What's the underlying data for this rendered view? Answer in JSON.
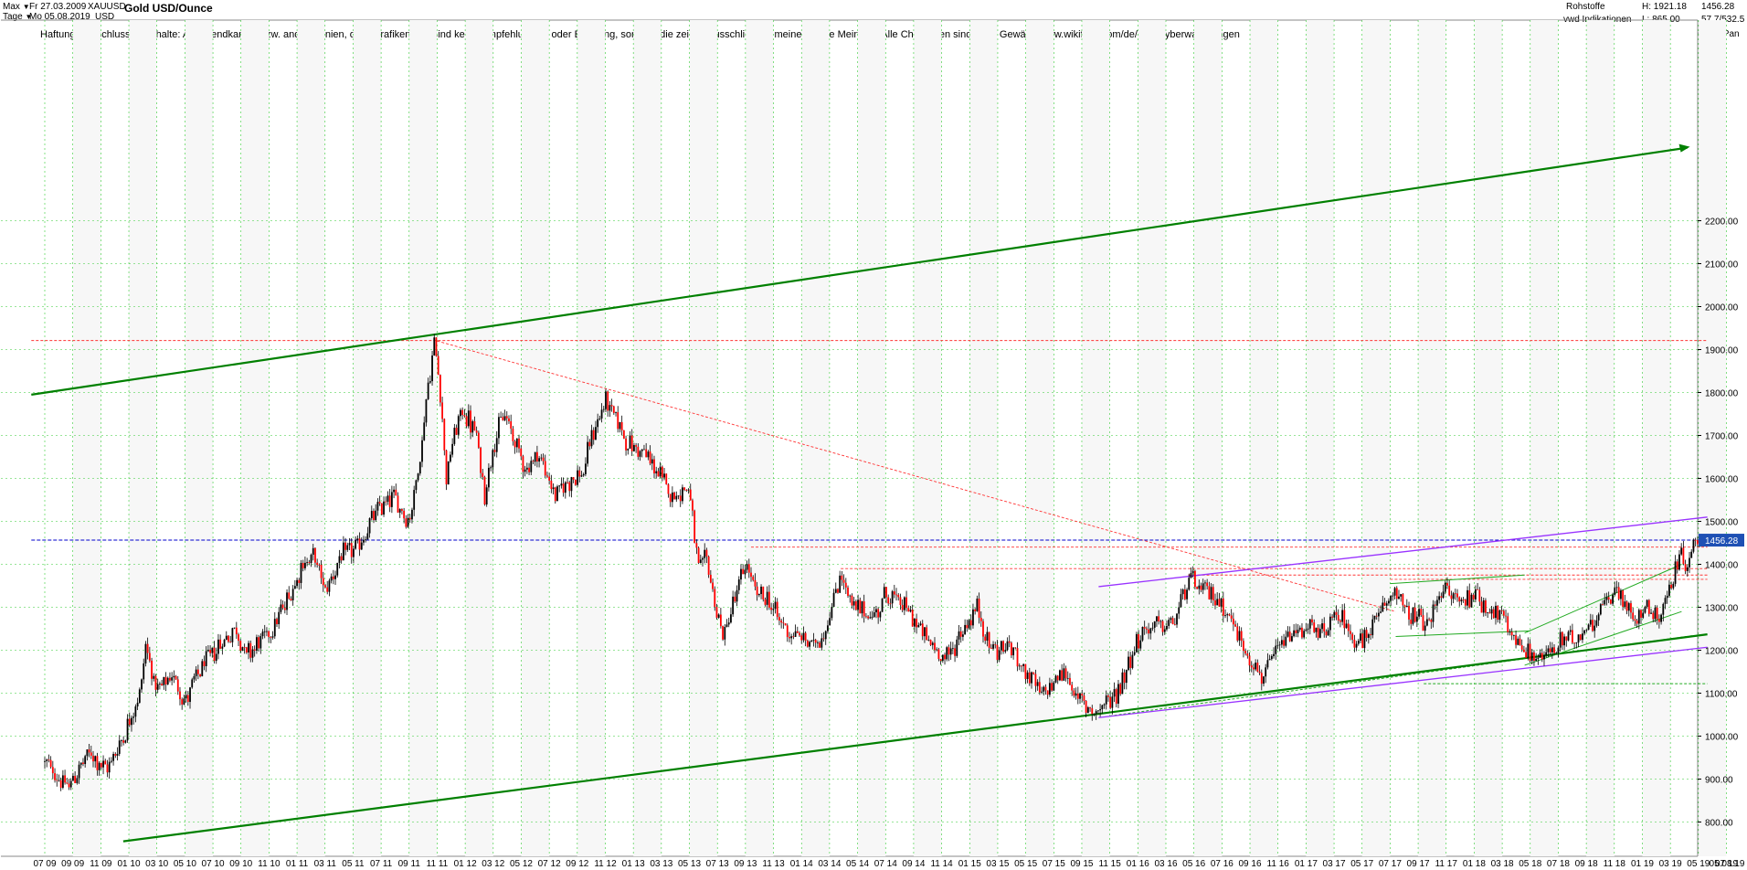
{
  "header": {
    "range_label": "Max",
    "interval_label": "Tage",
    "date_from": "Fr 27.03.2009",
    "date_to": "Mo 05.08.2019",
    "symbol": "XAUUSD",
    "currency": "USD",
    "title": "Gold USD/Ounce",
    "disclaimer": "Haftungsausschluss für Inhalte: Alle Trendkanäle bzw. andere Linien, oder Grafiken hier sind keine Empfehlungen, oder Beratung, sondern die zeigen ausschließlich meine eigene Meinung. Alle Chartdaten sind ohne Gewähr.  www.wikifolio.com/de/de/p/cyberwaehrungen",
    "category": "Rohstoffe",
    "source": "vwd Indikationen",
    "high_label": "H: 1921.18",
    "low_label": "L: 865.00",
    "last_value": "1456.28",
    "ratio": "57.7/532.5",
    "copyright": "(c)Tai-Pan"
  },
  "colors": {
    "grid": "#33cc33",
    "plot_bg": "#f7f7f7",
    "up_candle": "#000000",
    "down_candle": "#ff0000",
    "trend_green": "#008000",
    "trend_green_light": "#22aa22",
    "trend_violet": "#9933ff",
    "hline_red": "#ff3333",
    "hline_blue": "#0000cc",
    "price_tag": "#1e50b4"
  },
  "chart_data": {
    "type": "candlestick",
    "title": "Gold USD/Ounce",
    "ylim": [
      755,
      2385
    ],
    "y_ticks": [
      800,
      900,
      1000,
      1100,
      1200,
      1300,
      1400,
      1500,
      1600,
      1700,
      1800,
      1900,
      2000,
      2100,
      2200
    ],
    "x_labels": [
      "07 09",
      "09 09",
      "11 09",
      "01 10",
      "03 10",
      "05 10",
      "07 10",
      "09 10",
      "11 10",
      "01 11",
      "03 11",
      "05 11",
      "07 11",
      "09 11",
      "11 11",
      "01 12",
      "03 12",
      "05 12",
      "07 12",
      "09 12",
      "11 12",
      "01 13",
      "03 13",
      "05 13",
      "07 13",
      "09 13",
      "11 13",
      "01 14",
      "03 14",
      "05 14",
      "07 14",
      "09 14",
      "11 14",
      "01 15",
      "03 15",
      "05 15",
      "07 15",
      "09 15",
      "11 15",
      "01 16",
      "03 16",
      "05 16",
      "07 16",
      "09 16",
      "11 16",
      "01 17",
      "03 17",
      "05 17",
      "07 17",
      "09 17",
      "11 17",
      "01 18",
      "03 18",
      "05 18",
      "07 18",
      "09 18",
      "11 18",
      "01 19",
      "03 19",
      "05 19",
      "07 19"
    ],
    "x_end_label": "05.08.19",
    "last_price": 1456.28,
    "high": 1921.18,
    "low": 865.0,
    "series": [
      {
        "t": 0.0,
        "v": 940
      },
      {
        "t": 2.0,
        "v": 880
      },
      {
        "t": 4.0,
        "v": 960
      },
      {
        "t": 5.5,
        "v": 920
      },
      {
        "t": 7.0,
        "v": 1000
      },
      {
        "t": 8.5,
        "v": 1100
      },
      {
        "t": 9.0,
        "v": 1215
      },
      {
        "t": 10.0,
        "v": 1100
      },
      {
        "t": 11.5,
        "v": 1140
      },
      {
        "t": 12.5,
        "v": 1080
      },
      {
        "t": 14.0,
        "v": 1160
      },
      {
        "t": 15.5,
        "v": 1210
      },
      {
        "t": 17.0,
        "v": 1250
      },
      {
        "t": 18.0,
        "v": 1190
      },
      {
        "t": 20.0,
        "v": 1240
      },
      {
        "t": 21.5,
        "v": 1310
      },
      {
        "t": 23.0,
        "v": 1400
      },
      {
        "t": 24.0,
        "v": 1420
      },
      {
        "t": 25.0,
        "v": 1340
      },
      {
        "t": 26.5,
        "v": 1420
      },
      {
        "t": 28.0,
        "v": 1440
      },
      {
        "t": 29.5,
        "v": 1520
      },
      {
        "t": 31.0,
        "v": 1560
      },
      {
        "t": 32.5,
        "v": 1500
      },
      {
        "t": 33.5,
        "v": 1650
      },
      {
        "t": 34.0,
        "v": 1780
      },
      {
        "t": 34.8,
        "v": 1921
      },
      {
        "t": 35.3,
        "v": 1800
      },
      {
        "t": 35.8,
        "v": 1600
      },
      {
        "t": 36.5,
        "v": 1700
      },
      {
        "t": 37.3,
        "v": 1760
      },
      {
        "t": 38.5,
        "v": 1700
      },
      {
        "t": 39.2,
        "v": 1560
      },
      {
        "t": 40.0,
        "v": 1680
      },
      {
        "t": 41.0,
        "v": 1750
      },
      {
        "t": 42.0,
        "v": 1680
      },
      {
        "t": 43.0,
        "v": 1620
      },
      {
        "t": 44.0,
        "v": 1660
      },
      {
        "t": 45.5,
        "v": 1560
      },
      {
        "t": 47.0,
        "v": 1600
      },
      {
        "t": 48.0,
        "v": 1610
      },
      {
        "t": 48.8,
        "v": 1700
      },
      {
        "t": 50.0,
        "v": 1780
      },
      {
        "t": 51.0,
        "v": 1740
      },
      {
        "t": 52.0,
        "v": 1680
      },
      {
        "t": 53.5,
        "v": 1660
      },
      {
        "t": 55.0,
        "v": 1600
      },
      {
        "t": 56.0,
        "v": 1560
      },
      {
        "t": 57.5,
        "v": 1580
      },
      {
        "t": 58.0,
        "v": 1440
      },
      {
        "t": 58.4,
        "v": 1380
      },
      {
        "t": 59.0,
        "v": 1420
      },
      {
        "t": 60.0,
        "v": 1280
      },
      {
        "t": 60.5,
        "v": 1230
      },
      {
        "t": 61.5,
        "v": 1320
      },
      {
        "t": 62.5,
        "v": 1400
      },
      {
        "t": 63.5,
        "v": 1330
      },
      {
        "t": 64.5,
        "v": 1320
      },
      {
        "t": 65.5,
        "v": 1270
      },
      {
        "t": 66.5,
        "v": 1240
      },
      {
        "t": 67.5,
        "v": 1230
      },
      {
        "t": 68.5,
        "v": 1210
      },
      {
        "t": 69.5,
        "v": 1240
      },
      {
        "t": 70.5,
        "v": 1330
      },
      {
        "t": 71.0,
        "v": 1380
      },
      {
        "t": 72.0,
        "v": 1300
      },
      {
        "t": 73.0,
        "v": 1290
      },
      {
        "t": 74.0,
        "v": 1280
      },
      {
        "t": 75.0,
        "v": 1330
      },
      {
        "t": 76.5,
        "v": 1310
      },
      {
        "t": 77.5,
        "v": 1270
      },
      {
        "t": 78.5,
        "v": 1230
      },
      {
        "t": 79.5,
        "v": 1200
      },
      {
        "t": 80.5,
        "v": 1180
      },
      {
        "t": 81.5,
        "v": 1230
      },
      {
        "t": 82.5,
        "v": 1270
      },
      {
        "t": 83.2,
        "v": 1300
      },
      {
        "t": 84.0,
        "v": 1220
      },
      {
        "t": 85.0,
        "v": 1200
      },
      {
        "t": 86.0,
        "v": 1210
      },
      {
        "t": 87.0,
        "v": 1170
      },
      {
        "t": 88.0,
        "v": 1130
      },
      {
        "t": 89.0,
        "v": 1090
      },
      {
        "t": 90.0,
        "v": 1130
      },
      {
        "t": 91.0,
        "v": 1150
      },
      {
        "t": 92.0,
        "v": 1090
      },
      {
        "t": 93.0,
        "v": 1065
      },
      {
        "t": 94.0,
        "v": 1060
      },
      {
        "t": 95.0,
        "v": 1080
      },
      {
        "t": 96.0,
        "v": 1120
      },
      {
        "t": 97.0,
        "v": 1200
      },
      {
        "t": 98.0,
        "v": 1240
      },
      {
        "t": 99.0,
        "v": 1260
      },
      {
        "t": 100.0,
        "v": 1250
      },
      {
        "t": 101.0,
        "v": 1280
      },
      {
        "t": 101.5,
        "v": 1330
      },
      {
        "t": 102.0,
        "v": 1370
      },
      {
        "t": 103.0,
        "v": 1340
      },
      {
        "t": 104.0,
        "v": 1330
      },
      {
        "t": 105.0,
        "v": 1310
      },
      {
        "t": 106.0,
        "v": 1260
      },
      {
        "t": 107.0,
        "v": 1200
      },
      {
        "t": 108.0,
        "v": 1160
      },
      {
        "t": 108.5,
        "v": 1130
      },
      {
        "t": 109.5,
        "v": 1180
      },
      {
        "t": 110.5,
        "v": 1220
      },
      {
        "t": 111.5,
        "v": 1240
      },
      {
        "t": 112.5,
        "v": 1260
      },
      {
        "t": 113.5,
        "v": 1230
      },
      {
        "t": 114.5,
        "v": 1260
      },
      {
        "t": 115.5,
        "v": 1280
      },
      {
        "t": 116.5,
        "v": 1240
      },
      {
        "t": 117.5,
        "v": 1210
      },
      {
        "t": 118.5,
        "v": 1260
      },
      {
        "t": 119.5,
        "v": 1300
      },
      {
        "t": 120.5,
        "v": 1350
      },
      {
        "t": 121.5,
        "v": 1280
      },
      {
        "t": 122.5,
        "v": 1270
      },
      {
        "t": 123.5,
        "v": 1260
      },
      {
        "t": 124.5,
        "v": 1340
      },
      {
        "t": 125.5,
        "v": 1330
      },
      {
        "t": 126.5,
        "v": 1310
      },
      {
        "t": 127.5,
        "v": 1340
      },
      {
        "t": 128.5,
        "v": 1300
      },
      {
        "t": 129.5,
        "v": 1290
      },
      {
        "t": 130.5,
        "v": 1250
      },
      {
        "t": 131.5,
        "v": 1210
      },
      {
        "t": 132.5,
        "v": 1195
      },
      {
        "t": 133.5,
        "v": 1180
      },
      {
        "t": 134.5,
        "v": 1200
      },
      {
        "t": 135.5,
        "v": 1225
      },
      {
        "t": 136.5,
        "v": 1220
      },
      {
        "t": 137.5,
        "v": 1250
      },
      {
        "t": 138.5,
        "v": 1290
      },
      {
        "t": 139.5,
        "v": 1320
      },
      {
        "t": 140.0,
        "v": 1340
      },
      {
        "t": 141.0,
        "v": 1300
      },
      {
        "t": 142.0,
        "v": 1280
      },
      {
        "t": 143.0,
        "v": 1300
      },
      {
        "t": 144.0,
        "v": 1280
      },
      {
        "t": 145.0,
        "v": 1340
      },
      {
        "t": 145.7,
        "v": 1420
      },
      {
        "t": 146.5,
        "v": 1400
      },
      {
        "t": 147.0,
        "v": 1440
      },
      {
        "t": 147.6,
        "v": 1456
      }
    ],
    "lines": [
      {
        "name": "green-top",
        "kind": "trend-main",
        "from": [
          -1.2,
          1795
        ],
        "to": [
          146.5,
          2370
        ]
      },
      {
        "name": "green-bottom",
        "kind": "trend-main",
        "from": [
          7.0,
          755
        ],
        "to": [
          148.3,
          1237
        ]
      },
      {
        "name": "violet-top",
        "kind": "trend-violet",
        "from": [
          94.0,
          1348
        ],
        "to": [
          148.3,
          1510
        ]
      },
      {
        "name": "violet-bottom",
        "kind": "trend-violet",
        "from": [
          94.0,
          1043
        ],
        "to": [
          148.3,
          1207
        ]
      },
      {
        "name": "red-diag",
        "kind": "red-dash",
        "from": [
          35.0,
          1920
        ],
        "to": [
          120.5,
          1290
        ]
      },
      {
        "name": "green-rise",
        "kind": "green-dash",
        "from": [
          95.0,
          1047
        ],
        "to": [
          147.0,
          1234
        ]
      },
      {
        "name": "chan-green-a",
        "kind": "green-thin",
        "from": [
          132.0,
          1165
        ],
        "to": [
          146.0,
          1290
        ]
      },
      {
        "name": "chan-green-b",
        "kind": "green-thin",
        "from": [
          132.0,
          1240
        ],
        "to": [
          146.0,
          1400
        ]
      },
      {
        "name": "chan-green-c",
        "kind": "green-thin",
        "from": [
          120.5,
          1232
        ],
        "to": [
          132.5,
          1245
        ]
      },
      {
        "name": "chan-green-d",
        "kind": "green-thin",
        "from": [
          120.0,
          1355
        ],
        "to": [
          132.0,
          1375
        ]
      },
      {
        "name": "h-1921",
        "kind": "red-dash",
        "from": [
          -1.2,
          1921
        ],
        "to": [
          148.3,
          1921
        ]
      },
      {
        "name": "h-1440",
        "kind": "red-dash",
        "from": [
          63.0,
          1440
        ],
        "to": [
          148.3,
          1440
        ]
      },
      {
        "name": "h-1390",
        "kind": "red-dash",
        "from": [
          71.0,
          1390
        ],
        "to": [
          148.3,
          1390
        ]
      },
      {
        "name": "h-1375",
        "kind": "red-dash",
        "from": [
          102.0,
          1375
        ],
        "to": [
          148.3,
          1375
        ]
      },
      {
        "name": "h-1365",
        "kind": "red-dash",
        "from": [
          120.0,
          1365
        ],
        "to": [
          148.3,
          1365
        ]
      },
      {
        "name": "h-1122",
        "kind": "green-dash",
        "from": [
          123.0,
          1122
        ],
        "to": [
          148.3,
          1122
        ]
      },
      {
        "name": "h-last",
        "kind": "blue-dash",
        "from": [
          -1.2,
          1456.28
        ],
        "to": [
          148.3,
          1456.28
        ]
      }
    ]
  }
}
